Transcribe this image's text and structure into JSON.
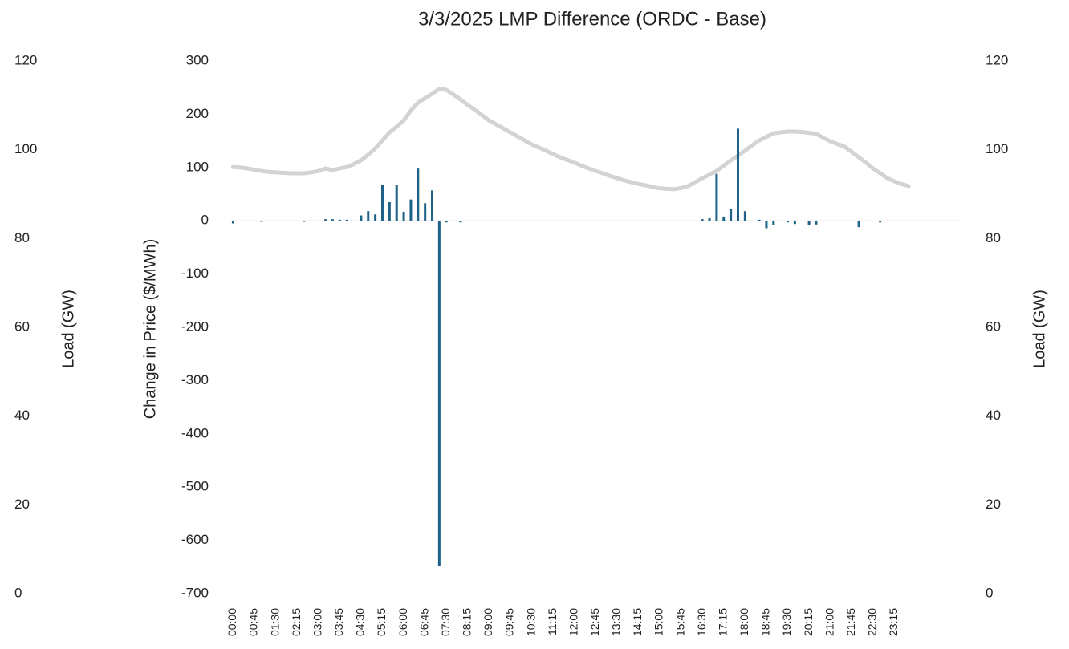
{
  "chart_data": {
    "type": "bar",
    "title": "3/3/2025  LMP Difference (ORDC - Base)",
    "ylabel": "Change in Price ($/MWh)",
    "y2label": "Load (GW)",
    "y3label": "Load (GW)",
    "categories": [
      "00:00",
      null,
      null,
      "00:45",
      null,
      null,
      "01:30",
      null,
      null,
      "02:15",
      null,
      null,
      "03:00",
      null,
      null,
      "03:45",
      null,
      null,
      "04:30",
      null,
      null,
      "05:15",
      null,
      null,
      "06:00",
      null,
      null,
      "06:45",
      null,
      null,
      "07:30",
      null,
      null,
      "08:15",
      null,
      null,
      "09:00",
      null,
      null,
      "09:45",
      null,
      null,
      "10:30",
      null,
      null,
      "11:15",
      null,
      null,
      "12:00",
      null,
      null,
      "12:45",
      null,
      null,
      "13:30",
      null,
      null,
      "14:15",
      null,
      null,
      "15:00",
      null,
      null,
      "15:45",
      null,
      null,
      "16:30",
      null,
      null,
      "17:15",
      null,
      null,
      "18:00",
      null,
      null,
      "18:45",
      null,
      null,
      "19:30",
      null,
      null,
      "20:15",
      null,
      null,
      "21:00",
      null,
      null,
      "21:45",
      null,
      null,
      "22:30",
      null,
      null,
      "23:15",
      null,
      null
    ],
    "series": [
      {
        "type": "bar",
        "color": "#1f6288",
        "values": [
          -5,
          0,
          0,
          0,
          -2,
          0,
          0,
          0,
          0,
          0,
          -2,
          0,
          0,
          3,
          3,
          2,
          2,
          0,
          10,
          18,
          12,
          67,
          35,
          67,
          17,
          40,
          98,
          33,
          57,
          -648,
          -3,
          0,
          -3,
          0,
          0,
          0,
          0,
          0,
          0,
          0,
          0,
          0,
          0,
          0,
          0,
          0,
          0,
          0,
          0,
          0,
          0,
          0,
          0,
          0,
          0,
          0,
          0,
          0,
          0,
          0,
          0,
          0,
          0,
          0,
          0,
          0,
          3,
          5,
          88,
          8,
          23,
          173,
          18,
          0,
          2,
          -14,
          -8,
          0,
          -3,
          -6,
          0,
          -8,
          -7,
          0,
          0,
          0,
          0,
          0,
          -12,
          0,
          0,
          -3,
          0,
          0,
          0,
          0
        ]
      },
      {
        "type": "line",
        "axis": "y2",
        "color": "#d3d3d3",
        "values": [
          96.1,
          96.0,
          95.8,
          95.5,
          95.2,
          95.0,
          94.9,
          94.8,
          94.7,
          94.7,
          94.7,
          94.9,
          95.2,
          95.8,
          95.4,
          95.8,
          96.1,
          96.8,
          97.6,
          98.9,
          100.3,
          102.1,
          103.9,
          105.2,
          106.6,
          108.8,
          110.6,
          111.6,
          112.6,
          113.7,
          113.5,
          112.4,
          111.3,
          110.1,
          109.0,
          107.8,
          106.6,
          105.7,
          104.8,
          103.9,
          103.0,
          102.1,
          101.2,
          100.5,
          99.8,
          99.0,
          98.3,
          97.7,
          97.1,
          96.4,
          95.8,
          95.2,
          94.7,
          94.1,
          93.6,
          93.1,
          92.7,
          92.3,
          92.0,
          91.6,
          91.3,
          91.2,
          91.1,
          91.4,
          91.8,
          92.7,
          93.6,
          94.4,
          95.2,
          96.4,
          97.6,
          98.7,
          99.8,
          101.0,
          102.1,
          102.9,
          103.7,
          103.9,
          104.1,
          104.1,
          104.0,
          103.8,
          103.6,
          102.7,
          101.9,
          101.3,
          100.7,
          99.5,
          98.3,
          97.1,
          95.8,
          94.7,
          93.6,
          92.9,
          92.3,
          91.8
        ]
      }
    ],
    "ylim": [
      -700,
      300
    ],
    "yticks": [
      -700,
      -600,
      -500,
      -400,
      -300,
      -200,
      -100,
      0,
      100,
      200,
      300
    ],
    "y2lim": [
      0,
      120
    ],
    "y2ticks": [
      0,
      20,
      40,
      60,
      80,
      100,
      120
    ],
    "y3lim": [
      0,
      120
    ],
    "y3ticks": [
      0,
      20,
      40,
      60,
      80,
      100,
      120
    ]
  }
}
